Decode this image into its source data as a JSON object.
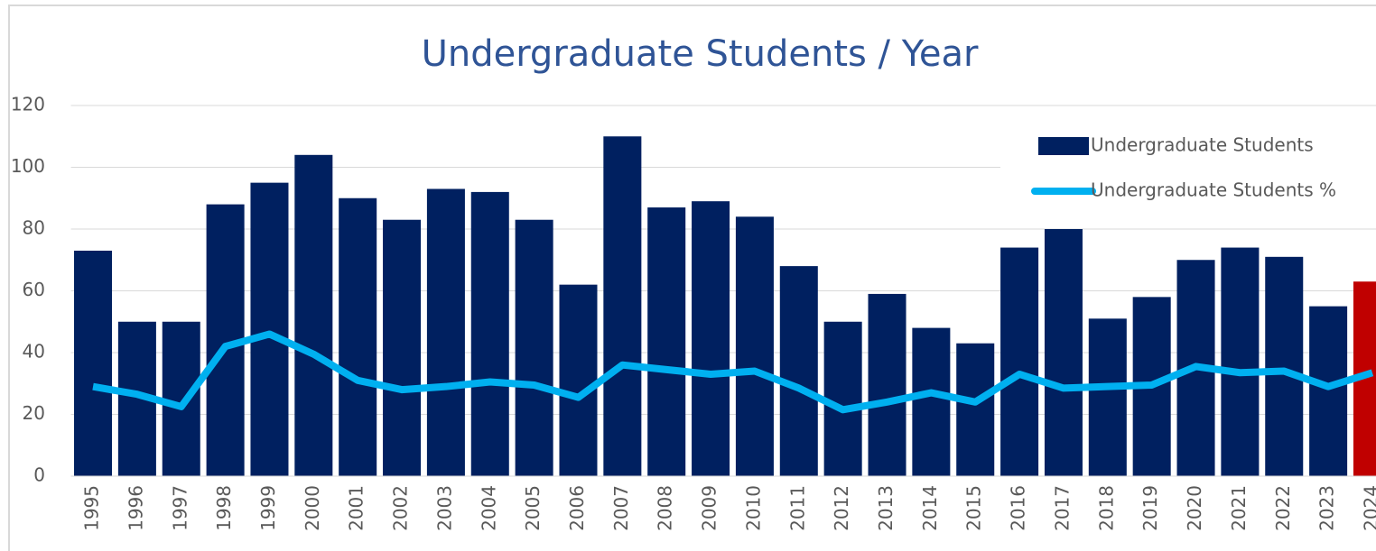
{
  "chart_data": {
    "type": "bar",
    "title": "Undergraduate Students / Year",
    "categories": [
      "1995",
      "1996",
      "1997",
      "1998",
      "1999",
      "2000",
      "2001",
      "2002",
      "2003",
      "2004",
      "2005",
      "2006",
      "2007",
      "2008",
      "2009",
      "2010",
      "2011",
      "2012",
      "2013",
      "2014",
      "2015",
      "2016",
      "2017",
      "2018",
      "2019",
      "2020",
      "2021",
      "2022",
      "2023",
      "2024"
    ],
    "series": [
      {
        "name": "Undergraduate Students",
        "type": "bar",
        "color": "#002060",
        "colors": [
          "#002060",
          "#002060",
          "#002060",
          "#002060",
          "#002060",
          "#002060",
          "#002060",
          "#002060",
          "#002060",
          "#002060",
          "#002060",
          "#002060",
          "#002060",
          "#002060",
          "#002060",
          "#002060",
          "#002060",
          "#002060",
          "#002060",
          "#002060",
          "#002060",
          "#002060",
          "#002060",
          "#002060",
          "#002060",
          "#002060",
          "#002060",
          "#002060",
          "#002060",
          "#c00000"
        ],
        "values": [
          73,
          50,
          50,
          88,
          95,
          104,
          90,
          83,
          93,
          92,
          83,
          62,
          110,
          87,
          89,
          84,
          68,
          50,
          59,
          48,
          43,
          74,
          80,
          51,
          58,
          70,
          74,
          71,
          55,
          63
        ]
      },
      {
        "name": "Undergraduate Students %",
        "type": "line",
        "color": "#00b0f0",
        "values": [
          29,
          26.5,
          22.5,
          42,
          46,
          39.5,
          31,
          28,
          29,
          30.5,
          29.5,
          25.5,
          36,
          34.5,
          33,
          34,
          28.5,
          21.5,
          24,
          27,
          24,
          33,
          28.5,
          29,
          29.5,
          35.5,
          33.5,
          34,
          29,
          33.5
        ]
      }
    ],
    "ylim": [
      0,
      120
    ],
    "yticks": [
      0,
      20,
      40,
      60,
      80,
      100,
      120
    ],
    "grid": true,
    "legend": "top-right"
  }
}
